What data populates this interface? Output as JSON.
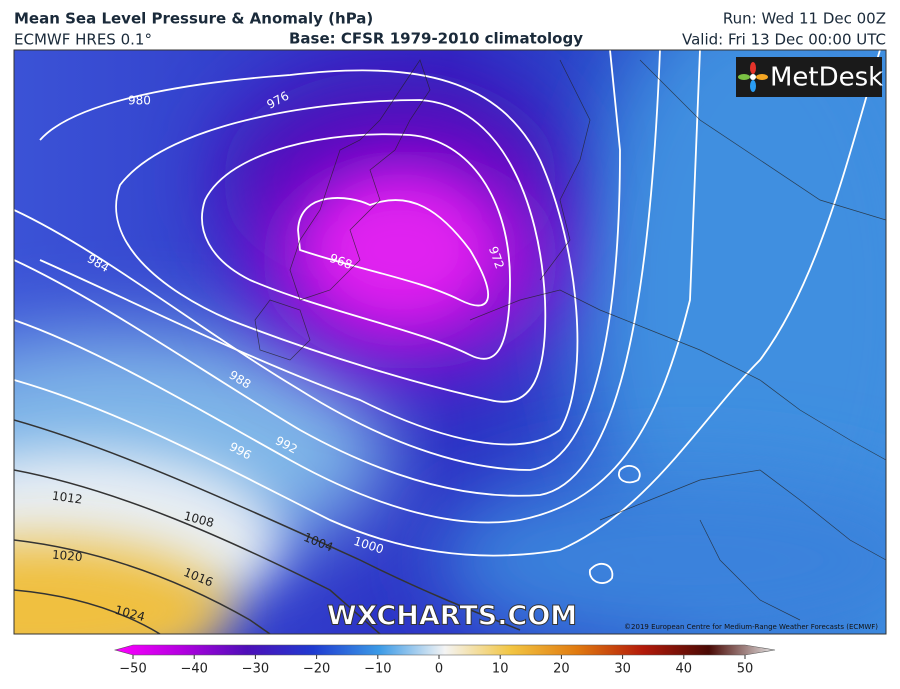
{
  "header": {
    "title": "Mean Sea Level Pressure & Anomaly (hPa)",
    "model": "ECMWF HRES 0.1°",
    "base": "Base: CFSR 1979-2010 climatology",
    "run": "Run: Wed 11 Dec 00Z",
    "valid": "Valid: Fri 13 Dec 00:00 UTC"
  },
  "logo": "MetDesk",
  "watermark": "WXCHARTS.COM",
  "copyright": "©2019 European Centre for Medium-Range Weather Forecasts (ECMWF)",
  "contours": {
    "labels": [
      "980",
      "976",
      "972",
      "968",
      "984",
      "988",
      "992",
      "996",
      "1000",
      "1004",
      "1008",
      "1012",
      "1016",
      "1020",
      "1024"
    ]
  },
  "colorbar": {
    "ticks": [
      {
        "value": -50,
        "label": "−50"
      },
      {
        "value": -40,
        "label": "−40"
      },
      {
        "value": -30,
        "label": "−30"
      },
      {
        "value": -20,
        "label": "−20"
      },
      {
        "value": -10,
        "label": "−10"
      },
      0,
      10,
      20,
      30,
      40,
      50
    ]
  }
}
